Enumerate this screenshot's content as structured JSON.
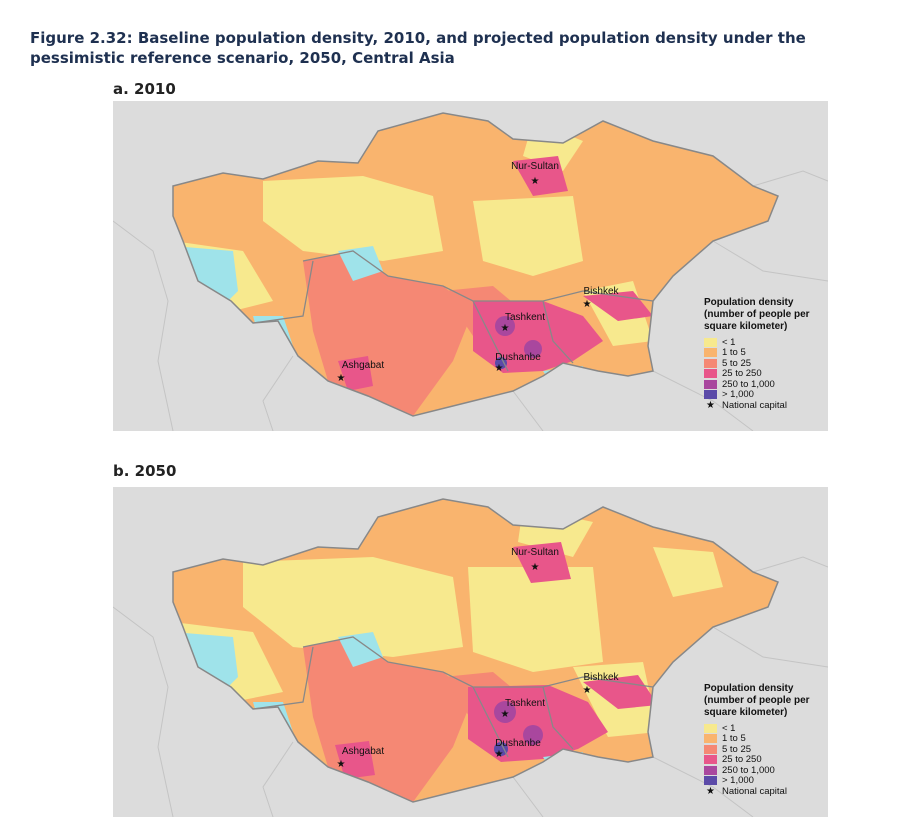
{
  "figure": {
    "title": "Figure 2.32: Baseline population density, 2010, and projected population density under the pessimistic reference scenario, 2050, Central Asia"
  },
  "legend": {
    "title": "Population density (number of people per square kilometer)",
    "items": [
      {
        "label": "< 1",
        "color": "#f7e98e"
      },
      {
        "label": "1 to 5",
        "color": "#f9b46e"
      },
      {
        "label": "5 to 25",
        "color": "#f58874"
      },
      {
        "label": "25 to 250",
        "color": "#e8568a"
      },
      {
        "label": "250 to 1,000",
        "color": "#a9479e"
      },
      {
        "label": "> 1,000",
        "color": "#5b4aa8"
      }
    ],
    "capital_label": "National capital"
  },
  "water_color": "#9fe3ea",
  "panels": [
    {
      "label": "a. 2010",
      "cities": [
        "Nur-Sultan",
        "Bishkek",
        "Tashkent",
        "Dushanbe",
        "Ashgabat"
      ]
    },
    {
      "label": "b. 2050",
      "cities": [
        "Nur-Sultan",
        "Bishkek",
        "Tashkent",
        "Dushanbe",
        "Ashgabat"
      ]
    }
  ]
}
